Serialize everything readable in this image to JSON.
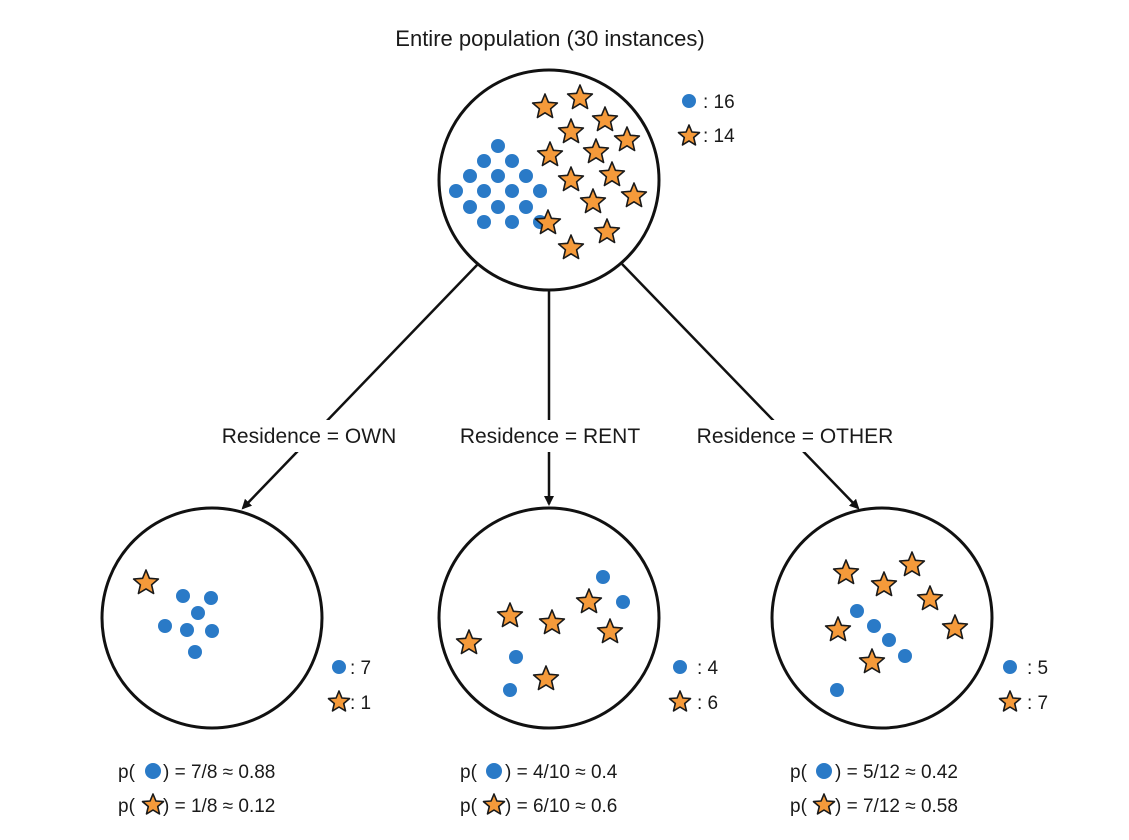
{
  "diagram": {
    "title": "Entire population (30 instances)",
    "colors": {
      "dot": "#2a7ac7",
      "star_fill": "#f59a3a",
      "star_stroke": "#1a1a1a"
    },
    "symbols": {
      "dot": "blue-dot-icon",
      "star": "orange-star-icon"
    },
    "root": {
      "dot_count": ": 16",
      "star_count": ": 14"
    },
    "branches": [
      {
        "edge_label": "Residence = OWN",
        "dot_count": ": 7",
        "star_count": ": 1",
        "p_dot_prefix": "p(",
        "p_dot_value": ") = 7/8 ≈ 0.88",
        "p_star_prefix": "p(",
        "p_star_value": ") = 1/8 ≈ 0.12"
      },
      {
        "edge_label": "Residence = RENT",
        "dot_count": ": 4",
        "star_count": ": 6",
        "p_dot_prefix": "p(",
        "p_dot_value": ") = 4/10 ≈ 0.4",
        "p_star_prefix": "p(",
        "p_star_value": ") = 6/10 ≈ 0.6"
      },
      {
        "edge_label": "Residence = OTHER",
        "dot_count": ": 5",
        "star_count": ": 7",
        "p_dot_prefix": "p(",
        "p_dot_value": ") = 5/12 ≈ 0.42",
        "p_star_prefix": "p(",
        "p_star_value": ") = 7/12 ≈ 0.58"
      }
    ]
  }
}
